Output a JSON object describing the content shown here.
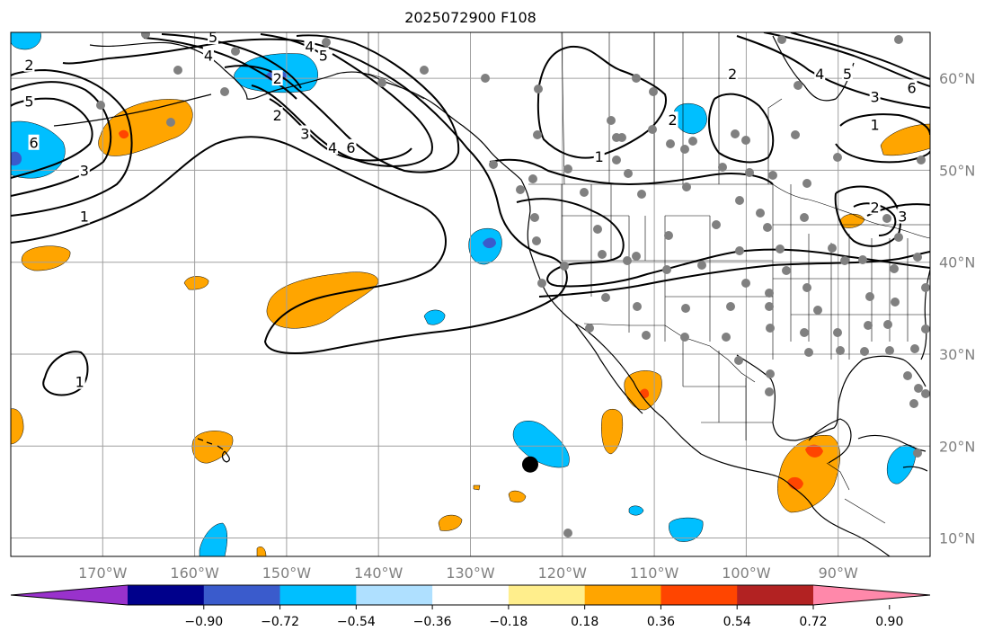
{
  "title": "2025072900 F108",
  "map": {
    "lon_range": [
      -180,
      -80
    ],
    "lat_range": [
      8,
      65
    ],
    "lat_ticks": [
      {
        "value": 10,
        "label": "10°N"
      },
      {
        "value": 20,
        "label": "20°N"
      },
      {
        "value": 30,
        "label": "30°N"
      },
      {
        "value": 40,
        "label": "40°N"
      },
      {
        "value": 50,
        "label": "50°N"
      },
      {
        "value": 60,
        "label": "60°N"
      }
    ],
    "lon_ticks": [
      {
        "value": -170,
        "label": "170°W"
      },
      {
        "value": -160,
        "label": "160°W"
      },
      {
        "value": -150,
        "label": "150°W"
      },
      {
        "value": -140,
        "label": "140°W"
      },
      {
        "value": -130,
        "label": "130°W"
      },
      {
        "value": -120,
        "label": "120°W"
      },
      {
        "value": -110,
        "label": "110°W"
      },
      {
        "value": -100,
        "label": "100°W"
      },
      {
        "value": -90,
        "label": "90°W"
      }
    ],
    "grid": true,
    "colors": {
      "grid": "#a0a0a0",
      "coast": "#000000",
      "station": "#808080",
      "marker": "#000000"
    },
    "marker": {
      "lon": -123.5,
      "lat": 18
    }
  },
  "colorbar": {
    "colors": [
      "#9932cc",
      "#00008b",
      "#3a5bcc",
      "#00bfff",
      "#afe0ff",
      "#ffffff",
      "#ffee8c",
      "#ffa500",
      "#ff4500",
      "#b22222",
      "#ff88aa"
    ],
    "ticks": [
      "−0.90",
      "−0.72",
      "−0.54",
      "−0.36",
      "−0.18",
      "0.18",
      "0.36",
      "0.54",
      "0.72",
      "0.90"
    ]
  },
  "contour_labels": [
    {
      "text": "5",
      "lon": -158,
      "lat": 64.5
    },
    {
      "text": "4",
      "lon": -158.5,
      "lat": 62.5
    },
    {
      "text": "4",
      "lon": -158.5,
      "lat": 62.5
    },
    {
      "text": "5",
      "lon": -146,
      "lat": 62.5
    },
    {
      "text": "4",
      "lon": -147.5,
      "lat": 63.5
    },
    {
      "text": "2",
      "lon": -178,
      "lat": 61.5
    },
    {
      "text": "5",
      "lon": -178,
      "lat": 57.5
    },
    {
      "text": "6",
      "lon": -177.5,
      "lat": 53
    },
    {
      "text": "3",
      "lon": -172,
      "lat": 50
    },
    {
      "text": "1",
      "lon": -172,
      "lat": 45
    },
    {
      "text": "2",
      "lon": -151,
      "lat": 60
    },
    {
      "text": "2",
      "lon": -151,
      "lat": 56
    },
    {
      "text": "3",
      "lon": -148,
      "lat": 54
    },
    {
      "text": "4",
      "lon": -145,
      "lat": 52.5
    },
    {
      "text": "6",
      "lon": -143,
      "lat": 52.5
    },
    {
      "text": "1",
      "lon": -116,
      "lat": 51.5
    },
    {
      "text": "2",
      "lon": -108,
      "lat": 55.5
    },
    {
      "text": "2",
      "lon": -101.5,
      "lat": 60.5
    },
    {
      "text": "4",
      "lon": -92,
      "lat": 60.5
    },
    {
      "text": "5",
      "lon": -89,
      "lat": 60.5
    },
    {
      "text": "3",
      "lon": -86,
      "lat": 58
    },
    {
      "text": "6",
      "lon": -82,
      "lat": 59
    },
    {
      "text": "1",
      "lon": -86,
      "lat": 55
    },
    {
      "text": "2",
      "lon": -86,
      "lat": 46
    },
    {
      "text": "3",
      "lon": -83,
      "lat": 45
    },
    {
      "text": "1",
      "lon": -172.5,
      "lat": 27
    }
  ]
}
